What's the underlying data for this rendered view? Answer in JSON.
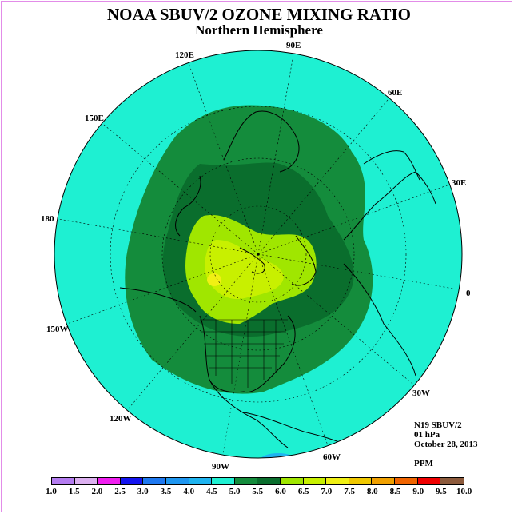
{
  "title": "NOAA SBUV/2 OZONE MIXING RATIO",
  "subtitle": "Northern Hemisphere",
  "longitude_labels": [
    "90E",
    "60E",
    "30E",
    "0",
    "30W",
    "60W",
    "90W",
    "120W",
    "150W",
    "180",
    "150E",
    "120E"
  ],
  "info": {
    "instrument": "N19 SBUV/2",
    "level": "01 hPa",
    "date": "October 28, 2013",
    "units": "PPM"
  },
  "colorbar": {
    "ticks": [
      "1.0",
      "1.5",
      "2.0",
      "2.5",
      "3.0",
      "3.5",
      "4.0",
      "4.5",
      "5.0",
      "5.5",
      "6.0",
      "6.5",
      "7.0",
      "7.5",
      "8.0",
      "8.5",
      "9.0",
      "9.5",
      "10.0"
    ],
    "colors": [
      "#b47cf0",
      "#dcb0f0",
      "#f01ef0",
      "#1414f0",
      "#1e78f0",
      "#1e96f0",
      "#1eb4f0",
      "#1ef0d2",
      "#148c3c",
      "#0a6e2d",
      "#a0e600",
      "#c8f000",
      "#f0f014",
      "#f0c800",
      "#f0a000",
      "#f06400",
      "#f00000",
      "#8c5a3c"
    ]
  },
  "field_colors": {
    "background": "#1ef0d2",
    "level_5_0": "#148c3c",
    "level_5_5": "#0a6e2d",
    "level_6_0": "#a0e600",
    "level_6_5": "#c8f000",
    "level_7_0": "#f0f014"
  }
}
